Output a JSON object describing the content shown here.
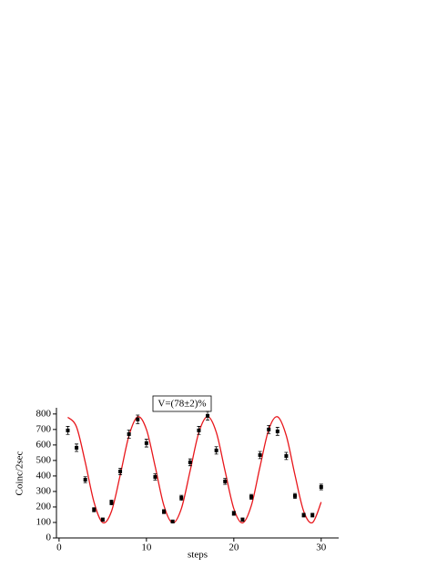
{
  "chart_data": {
    "type": "scatter",
    "x_label": "steps",
    "y_label": "Coinc/2sec",
    "annotation": "V=(78±2)%",
    "xlim": [
      -0.3,
      32
    ],
    "xticks": [
      0,
      10,
      20,
      30
    ],
    "ylim": [
      0,
      840
    ],
    "yticks": [
      0,
      100,
      200,
      300,
      400,
      500,
      600,
      700,
      800
    ],
    "series": [
      {
        "type": "scatter",
        "color": "#000000",
        "x": [
          1,
          2,
          3,
          4,
          5,
          6,
          7,
          8,
          9,
          10,
          11,
          12,
          13,
          14,
          15,
          16,
          17,
          18,
          19,
          20,
          21,
          22,
          23,
          24,
          25,
          26,
          27,
          28,
          29,
          30
        ],
        "values": [
          694,
          582,
          376,
          182,
          118,
          229,
          429,
          670,
          765,
          612,
          394,
          170,
          106,
          259,
          488,
          694,
          788,
          565,
          365,
          159,
          118,
          265,
          535,
          700,
          688,
          529,
          271,
          147,
          147,
          329
        ],
        "errors": [
          26,
          24,
          19,
          13,
          11,
          15,
          21,
          26,
          28,
          25,
          20,
          13,
          10,
          16,
          22,
          26,
          28,
          24,
          19,
          13,
          11,
          16,
          23,
          26,
          26,
          23,
          16,
          12,
          12,
          18
        ]
      },
      {
        "type": "line",
        "color": "#e8161b",
        "x": [
          1,
          2,
          3,
          4,
          5,
          6,
          7,
          8,
          9,
          10,
          11,
          12,
          13,
          14,
          15,
          16,
          17,
          18,
          19,
          20,
          21,
          22,
          23,
          24,
          25,
          26,
          27,
          28,
          29,
          30
        ],
        "values": [
          779,
          716,
          488,
          231,
          99,
          172,
          406,
          660,
          782,
          700,
          461,
          209,
          97,
          190,
          433,
          681,
          783,
          681,
          432,
          189,
          97,
          208,
          460,
          700,
          782,
          661,
          406,
          172,
          99,
          231
        ]
      }
    ]
  }
}
